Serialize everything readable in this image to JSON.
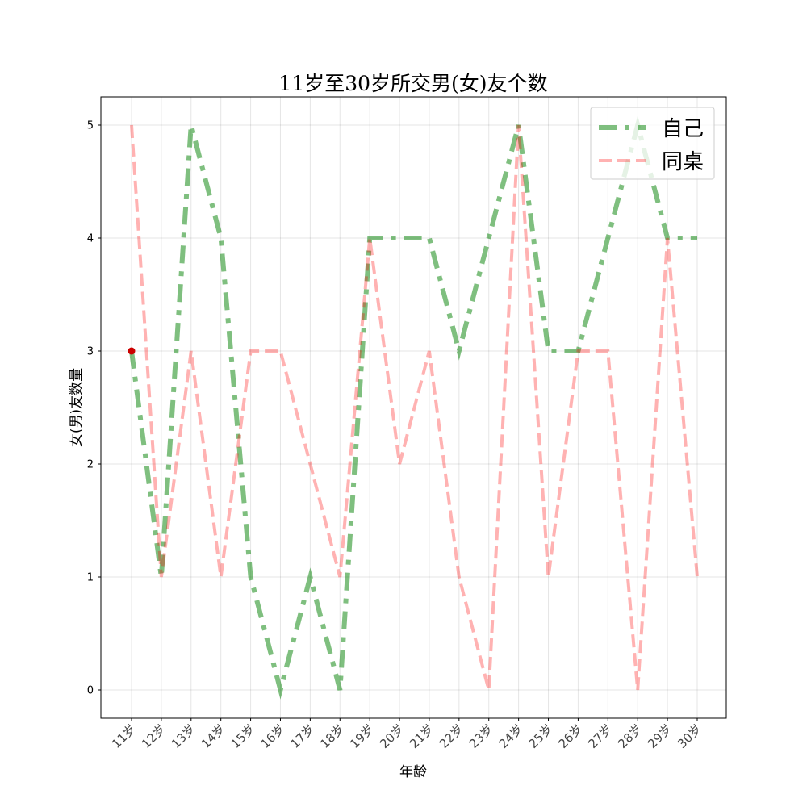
{
  "chart_data": {
    "type": "line",
    "title": "11岁至30岁所交男(女)友个数",
    "xlabel": "年龄",
    "ylabel": "女(男)友数量",
    "categories": [
      "11岁",
      "12岁",
      "13岁",
      "14岁",
      "15岁",
      "16岁",
      "17岁",
      "18岁",
      "19岁",
      "20岁",
      "21岁",
      "22岁",
      "23岁",
      "24岁",
      "25岁",
      "26岁",
      "27岁",
      "28岁",
      "29岁",
      "30岁"
    ],
    "ylim": [
      -0.25,
      5.25
    ],
    "yticks": [
      0,
      1,
      2,
      3,
      4,
      5
    ],
    "grid": true,
    "legend_position": "top-right",
    "series": [
      {
        "name": "自己",
        "values": [
          3,
          1,
          5,
          4,
          1,
          0,
          1,
          0,
          4,
          4,
          4,
          3,
          4,
          5,
          3,
          3,
          4,
          5,
          4,
          4
        ],
        "color": "#008000",
        "style": "dashdot"
      },
      {
        "name": "同桌",
        "values": [
          5,
          1,
          3,
          1,
          3,
          3,
          2,
          1,
          4,
          2,
          3,
          1,
          0,
          5,
          1,
          3,
          3,
          0,
          4,
          1
        ],
        "color": "#ff0000",
        "style": "dashed"
      }
    ],
    "annotations": [
      {
        "type": "marker",
        "x": "11岁",
        "y": 3,
        "color": "#cc0000"
      }
    ]
  }
}
